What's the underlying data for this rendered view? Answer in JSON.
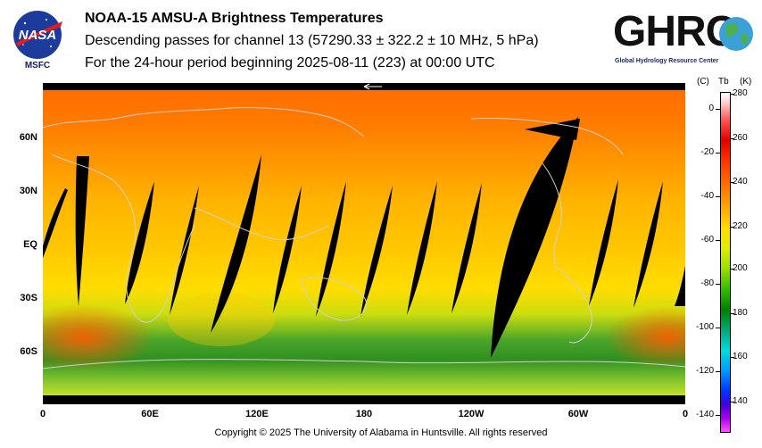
{
  "header": {
    "title": "NOAA-15 AMSU-A Brightness Temperatures",
    "subtitle": "Descending passes for channel 13 (57290.33 ± 322.2 ± 10 MHz, 5 hPa)",
    "period": "For the 24-hour period beginning 2025-08-11 (223) at 00:00 UTC"
  },
  "logos": {
    "nasa_text": "NASA",
    "msfc_text": "MSFC",
    "ghrc_text": "GHRC",
    "ghrc_subtitle": "Global Hydrology Resource Center"
  },
  "map": {
    "lat_labels": [
      "60N",
      "30N",
      "EQ",
      "30S",
      "60S"
    ],
    "lon_labels": [
      "0",
      "60E",
      "120E",
      "180",
      "120W",
      "60W",
      "0"
    ],
    "colors": {
      "hot": "#ff6a00",
      "warm": "#ffb000",
      "mid": "#ffdd00",
      "cool": "#2f9e1e",
      "swath_gap": "#000000",
      "coastline": "#d0d0d0"
    }
  },
  "colorbar": {
    "header_c": "(C)",
    "header_tb": "Tb",
    "header_k": "(K)",
    "celsius_ticks": [
      "0",
      "-20",
      "-40",
      "-60",
      "-80",
      "-100",
      "-120",
      "-140"
    ],
    "kelvin_ticks": [
      "280",
      "260",
      "240",
      "220",
      "200",
      "180",
      "160",
      "140"
    ]
  },
  "footer": {
    "copyright": "Copyright © 2025 The University of Alabama in Huntsville.  All rights reserved"
  }
}
